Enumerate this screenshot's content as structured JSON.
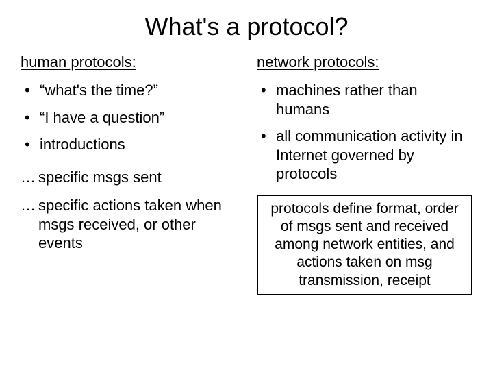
{
  "title": "What's a protocol?",
  "left": {
    "heading": "human protocols:",
    "bullets": [
      "“what's the time?”",
      "“I have a question”",
      "introductions"
    ],
    "ellipsis": [
      "specific msgs sent",
      "specific actions taken when msgs received, or other events"
    ]
  },
  "right": {
    "heading": "network protocols:",
    "bullets": [
      "machines rather than humans",
      "all communication activity in Internet governed by protocols"
    ],
    "box": "protocols define format, order of msgs sent and received among network entities, and actions taken on msg transmission, receipt"
  },
  "colors": {
    "background": "#ffffff",
    "text": "#000000",
    "box_border": "#000000"
  },
  "typography": {
    "font_family": "Comic Sans MS",
    "title_fontsize": 36,
    "heading_fontsize": 22,
    "body_fontsize": 22,
    "box_fontsize": 21
  }
}
